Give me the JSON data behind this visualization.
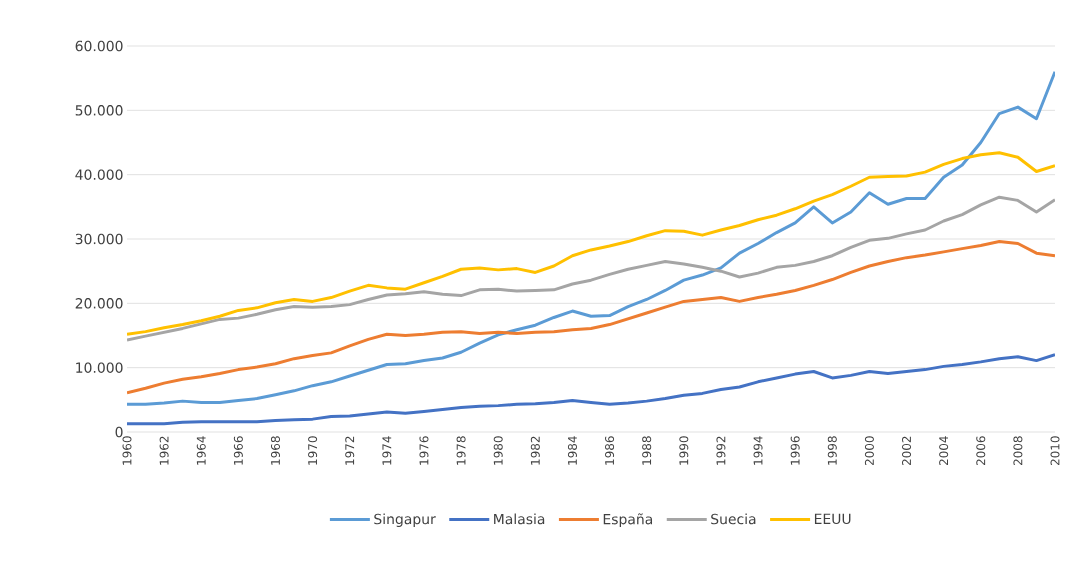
{
  "chart_data": {
    "type": "line",
    "x": [
      1960,
      1961,
      1962,
      1963,
      1964,
      1965,
      1966,
      1967,
      1968,
      1969,
      1970,
      1971,
      1972,
      1973,
      1974,
      1975,
      1976,
      1977,
      1978,
      1979,
      1980,
      1981,
      1982,
      1983,
      1984,
      1985,
      1986,
      1987,
      1988,
      1989,
      1990,
      1991,
      1992,
      1993,
      1994,
      1995,
      1996,
      1997,
      1998,
      1999,
      2000,
      2001,
      2002,
      2003,
      2004,
      2005,
      2006,
      2007,
      2008,
      2009,
      2010
    ],
    "xlim": [
      1960,
      2010
    ],
    "xticks": [
      1960,
      1962,
      1964,
      1966,
      1968,
      1970,
      1972,
      1974,
      1976,
      1978,
      1980,
      1982,
      1984,
      1986,
      1988,
      1990,
      1992,
      1994,
      1996,
      1998,
      2000,
      2002,
      2004,
      2006,
      2008,
      2010
    ],
    "ylim": [
      0,
      60000
    ],
    "yticks": [
      0,
      {
        "value": 10000,
        "label": "10.000"
      },
      {
        "value": 20000,
        "label": "20.000"
      },
      {
        "value": 30000,
        "label": "30.000"
      },
      {
        "value": 40000,
        "label": "40.000"
      },
      {
        "value": 50000,
        "label": "50.000"
      },
      {
        "value": 60000,
        "label": "60.000"
      }
    ],
    "grid": "y",
    "legend": "bottom",
    "series": [
      {
        "name": "Singapur",
        "color": "#5b9bd5",
        "values": [
          4300,
          4300,
          4500,
          4800,
          4600,
          4600,
          4900,
          5200,
          5800,
          6400,
          7200,
          7800,
          8700,
          9600,
          10500,
          10600,
          11100,
          11500,
          12400,
          13800,
          15100,
          15900,
          16600,
          17800,
          18800,
          18000,
          18100,
          19500,
          20600,
          22000,
          23600,
          24400,
          25500,
          27800,
          29300,
          31000,
          32500,
          35000,
          32500,
          34200,
          37200,
          35400,
          36300,
          36300,
          39600,
          41500,
          45000,
          49500,
          50500,
          48700,
          56000
        ]
      },
      {
        "name": "Malasia",
        "color": "#4472c4",
        "values": [
          1300,
          1300,
          1300,
          1500,
          1600,
          1600,
          1600,
          1600,
          1800,
          1900,
          2000,
          2400,
          2500,
          2800,
          3100,
          2900,
          3200,
          3500,
          3800,
          4000,
          4100,
          4300,
          4400,
          4600,
          4900,
          4600,
          4300,
          4500,
          4800,
          5200,
          5700,
          6000,
          6600,
          7000,
          7800,
          8400,
          9000,
          9400,
          8400,
          8800,
          9400,
          9100,
          9400,
          9700,
          10200,
          10500,
          10900,
          11400,
          11700,
          11100,
          12000
        ]
      },
      {
        "name": "España",
        "color": "#ed7d31",
        "values": [
          6100,
          6800,
          7600,
          8200,
          8600,
          9100,
          9700,
          10100,
          10600,
          11400,
          11900,
          12300,
          13400,
          14400,
          15200,
          15000,
          15200,
          15500,
          15600,
          15300,
          15500,
          15300,
          15500,
          15600,
          15900,
          16100,
          16700,
          17600,
          18500,
          19400,
          20300,
          20600,
          20900,
          20300,
          20900,
          21400,
          22000,
          22800,
          23700,
          24800,
          25800,
          26500,
          27100,
          27500,
          28000,
          28500,
          29000,
          29600,
          29300,
          27800,
          27400
        ]
      },
      {
        "name": "Suecia",
        "color": "#a5a5a5",
        "values": [
          14300,
          14900,
          15500,
          16100,
          16800,
          17500,
          17700,
          18300,
          19000,
          19500,
          19400,
          19500,
          19800,
          20600,
          21300,
          21500,
          21800,
          21400,
          21200,
          22100,
          22200,
          21900,
          22000,
          22100,
          23000,
          23600,
          24500,
          25300,
          25900,
          26500,
          26100,
          25600,
          25000,
          24100,
          24700,
          25600,
          25900,
          26500,
          27400,
          28700,
          29800,
          30100,
          30800,
          31400,
          32800,
          33800,
          35300,
          36500,
          36000,
          34200,
          36100
        ]
      },
      {
        "name": "EEUU",
        "color": "#ffc000",
        "values": [
          15200,
          15600,
          16200,
          16700,
          17300,
          18000,
          18900,
          19300,
          20100,
          20600,
          20300,
          20900,
          21900,
          22800,
          22400,
          22200,
          23200,
          24200,
          25300,
          25500,
          25200,
          25400,
          24800,
          25800,
          27400,
          28300,
          28900,
          29600,
          30500,
          31300,
          31200,
          30600,
          31400,
          32100,
          33000,
          33700,
          34700,
          35900,
          36900,
          38200,
          39600,
          39700,
          39800,
          40400,
          41600,
          42500,
          43100,
          43400,
          42700,
          40500,
          41400
        ]
      }
    ]
  }
}
